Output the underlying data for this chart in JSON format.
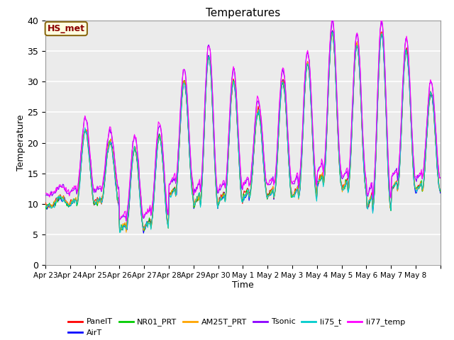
{
  "title": "Temperatures",
  "xlabel": "Time",
  "ylabel": "Temperature",
  "ylim": [
    0,
    40
  ],
  "yticks": [
    0,
    5,
    10,
    15,
    20,
    25,
    30,
    35,
    40
  ],
  "annotation_text": "HS_met",
  "annotation_color": "#8B0000",
  "annotation_bg": "#FFFFE0",
  "annotation_border": "#8B6914",
  "series": [
    {
      "label": "PanelT",
      "color": "#FF0000"
    },
    {
      "label": "AirT",
      "color": "#0000FF"
    },
    {
      "label": "NR01_PRT",
      "color": "#00CC00"
    },
    {
      "label": "AM25T_PRT",
      "color": "#FFA500"
    },
    {
      "label": "Tsonic",
      "color": "#8B00FF"
    },
    {
      "label": "li75_t",
      "color": "#00CCCC"
    },
    {
      "label": "li77_temp",
      "color": "#FF00FF"
    }
  ],
  "bg_color": "#EBEBEB",
  "fig_bg": "#FFFFFF",
  "grid_color": "#FFFFFF",
  "n_points": 480,
  "days": 16,
  "tick_labels": [
    "Apr 23",
    "Apr 24",
    "Apr 25",
    "Apr 26",
    "Apr 27",
    "Apr 28",
    "Apr 29",
    "Apr 30",
    "May 1",
    "May 2",
    "May 3",
    "May 4",
    "May 5",
    "May 6",
    "May 7",
    "May 8"
  ],
  "night_mins": [
    9.5,
    9.8,
    10.0,
    5.5,
    6.0,
    11.0,
    9.5,
    10.0,
    11.0,
    11.0,
    11.0,
    13.0,
    12.0,
    9.0,
    12.0,
    12.0
  ],
  "day_maxes": [
    11.0,
    22.0,
    20.0,
    19.0,
    21.0,
    30.0,
    34.0,
    30.0,
    25.0,
    30.0,
    33.0,
    38.0,
    36.0,
    38.0,
    35.0,
    28.0
  ],
  "series_offsets": [
    0.3,
    0.0,
    0.1,
    0.2,
    2.0,
    0.0,
    2.2
  ],
  "noise_scale": 0.25
}
